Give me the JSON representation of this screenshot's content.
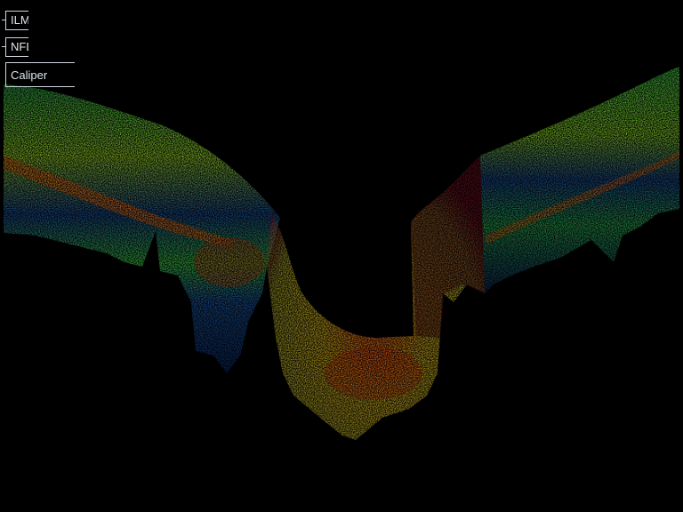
{
  "overlay": {
    "buttons": [
      {
        "label": "ILM"
      },
      {
        "label": "NFL"
      },
      {
        "label": "Caliper"
      }
    ]
  },
  "scan": {
    "description_colors": {
      "background": "#000000",
      "low": "#0b2a6b",
      "mid_low": "#1f6fb0",
      "mid": "#3fd14a",
      "mid_high": "#c9e21f",
      "high": "#ff6a1a",
      "peak": "#ff2a10",
      "nerve_edge": "#6b1020"
    }
  }
}
